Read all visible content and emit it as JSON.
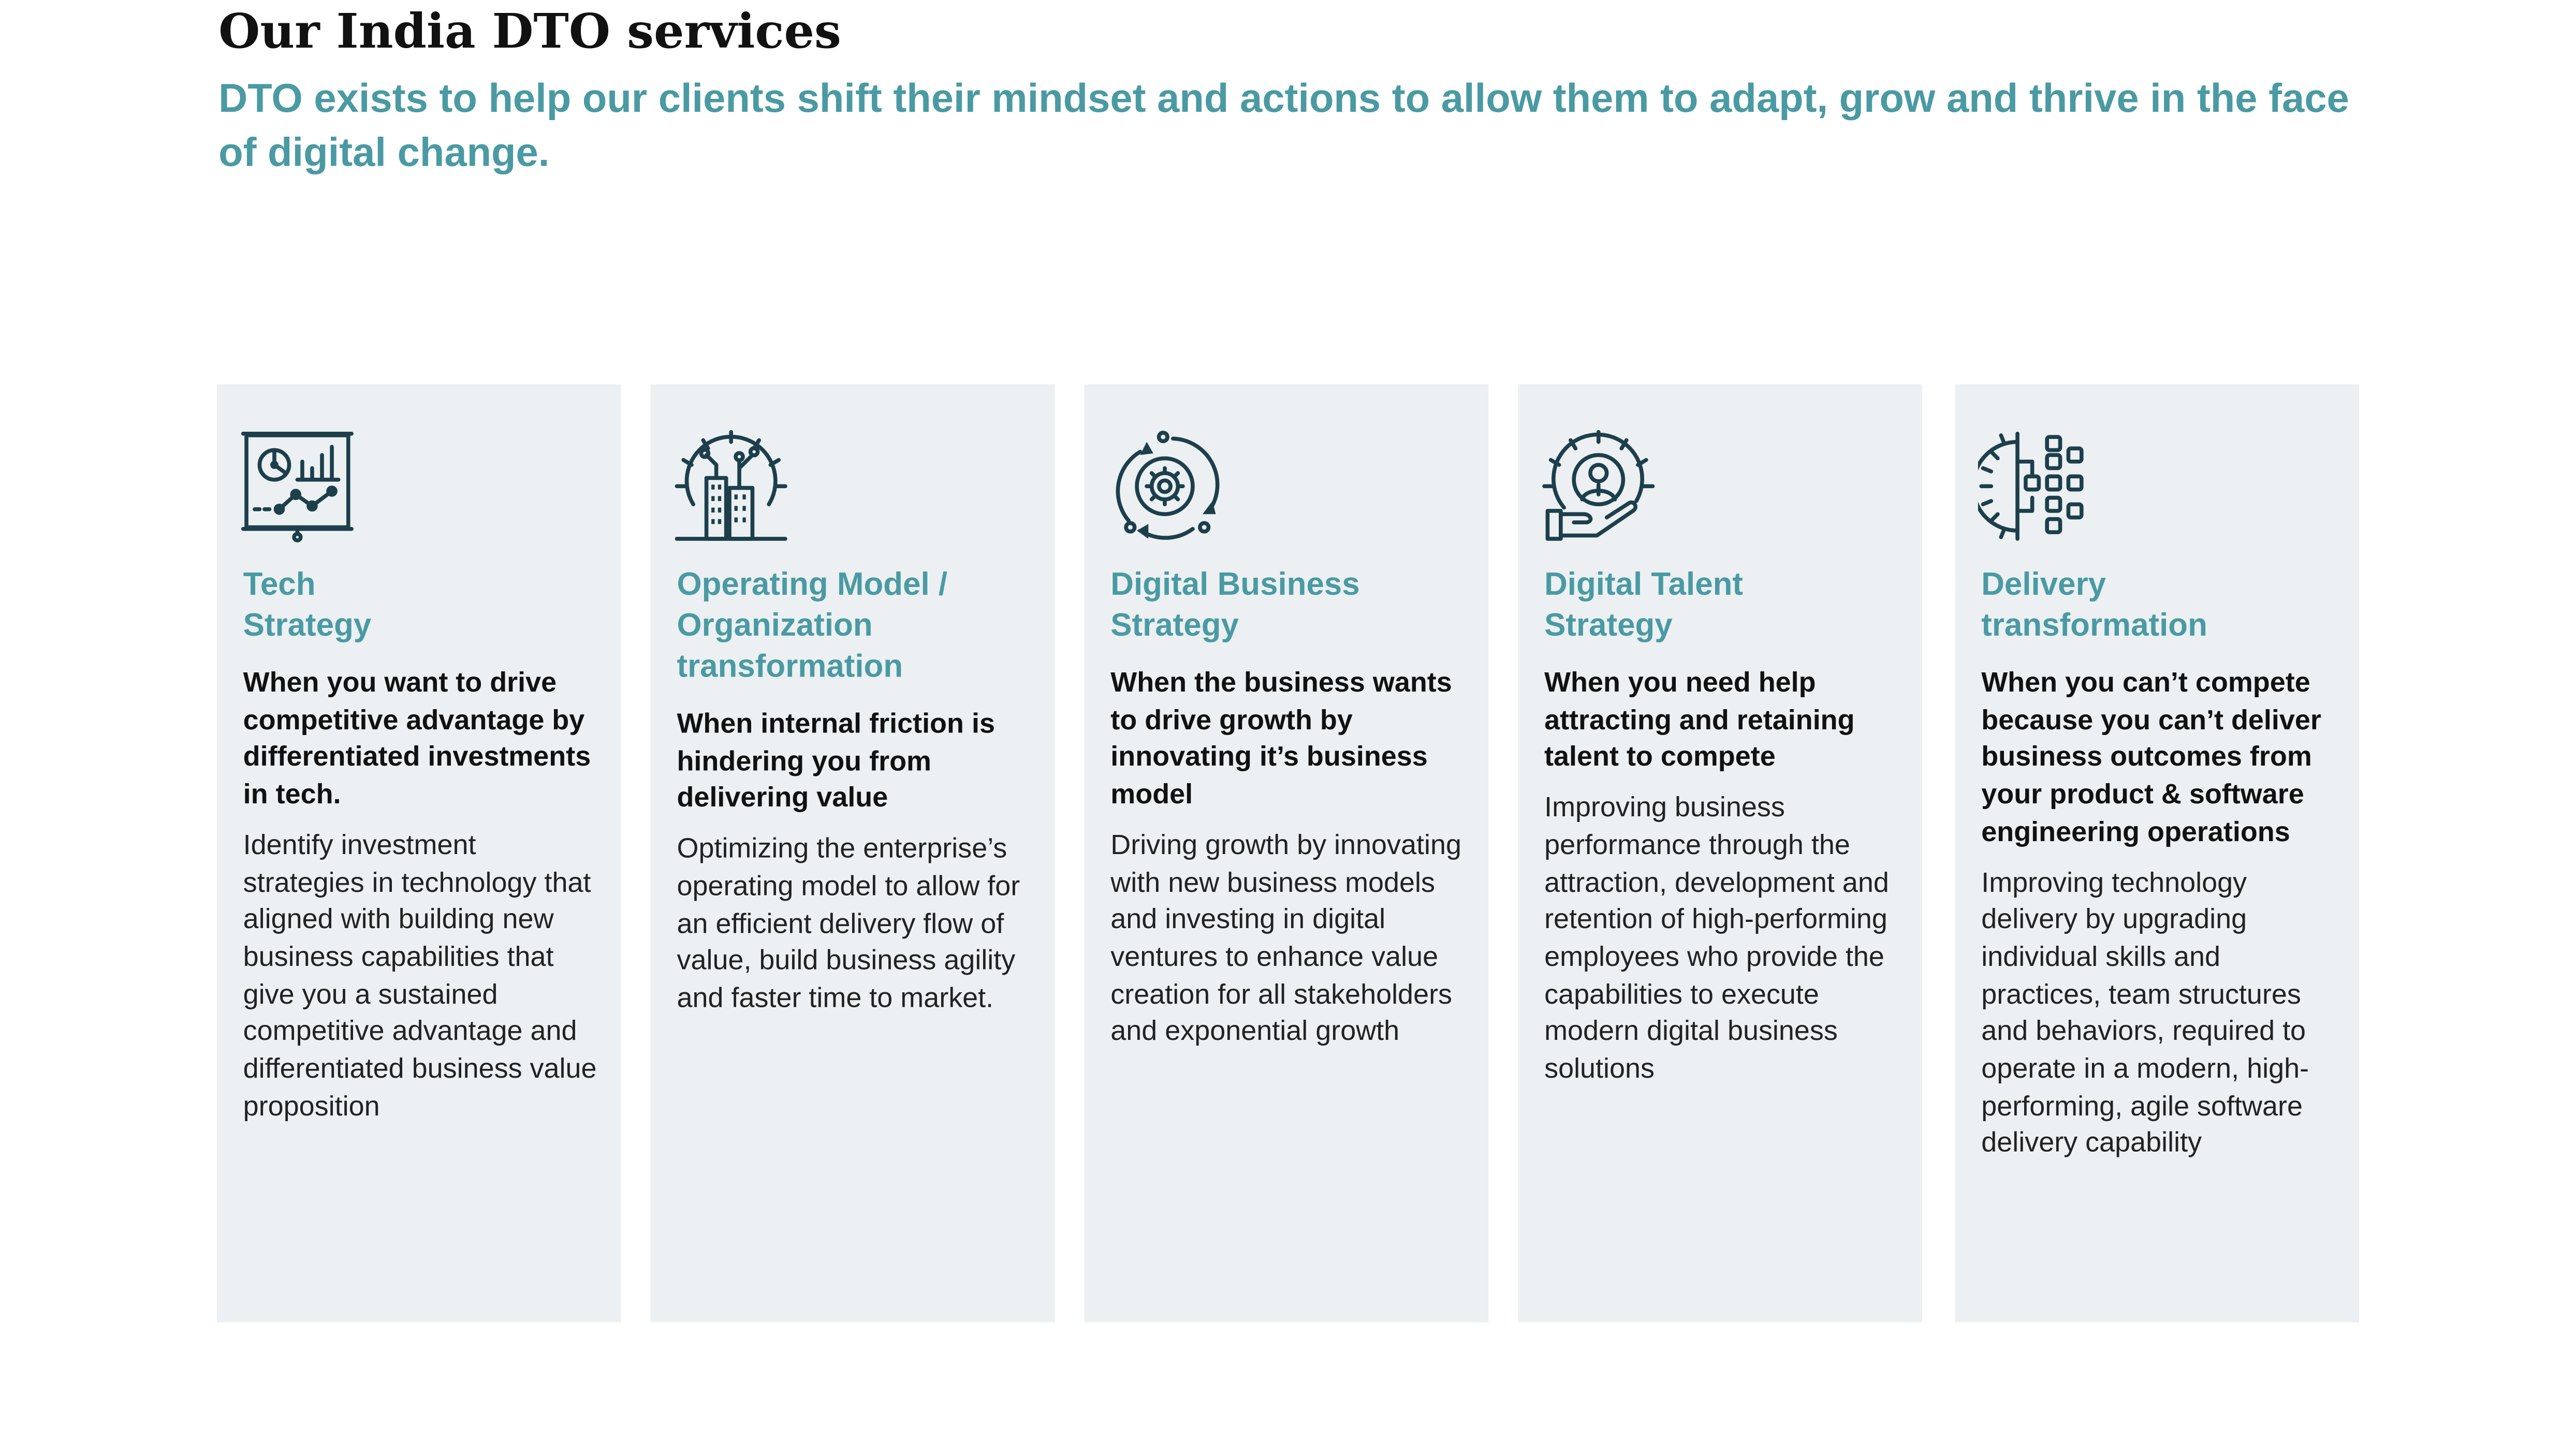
{
  "page": {
    "title": "Our India DTO services",
    "subtitle": "DTO exists to help our clients shift their mindset and actions to allow them to adapt, grow and thrive in the face of digital change."
  },
  "colors": {
    "accent": "#4a9aa3",
    "card_background": "#ecf0f2",
    "icon": "#1d3f4c",
    "heading": "#111111"
  },
  "cards": [
    {
      "icon": "presentation-chart-icon",
      "title_line1": "Tech",
      "title_line2": "Strategy",
      "lead": "When you want to drive competitive advantage by differentiated investments in tech.",
      "text": "Identify investment strategies in technology that aligned with building new business capabilities that give you a sustained competitive advantage and differentiated business value proposition"
    },
    {
      "icon": "gear-building-icon",
      "title_line1": "Operating Model /",
      "title_line2": "Organization transformation",
      "lead": "When internal friction is hindering you from delivering value",
      "text": "Optimizing the enterprise’s operating model to allow for an efficient delivery flow of value, build business agility and faster time to market."
    },
    {
      "icon": "gear-cycle-icon",
      "title_line1": "Digital Business",
      "title_line2": "Strategy",
      "lead": "When the business wants to drive growth by innovating it’s business model",
      "text": "Driving growth by innovating with new business models and investing in digital ventures to enhance value creation for all stakeholders and exponential growth"
    },
    {
      "icon": "talent-hand-icon",
      "title_line1": "Digital Talent",
      "title_line2": "Strategy",
      "lead": "When you need help attracting and retaining talent to compete",
      "text": "Improving business performance through the attraction, development and retention of high-performing employees who provide the capabilities to execute modern digital business solutions"
    },
    {
      "icon": "gear-blocks-icon",
      "title_line1": "Delivery",
      "title_line2": "transformation",
      "lead": "When you can’t compete because you can’t deliver business outcomes from your product & software engineering operations",
      "text": "Improving technology delivery by upgrading individual skills and practices, team structures and behaviors, required to operate in a modern, high-performing, agile software delivery capability"
    }
  ]
}
